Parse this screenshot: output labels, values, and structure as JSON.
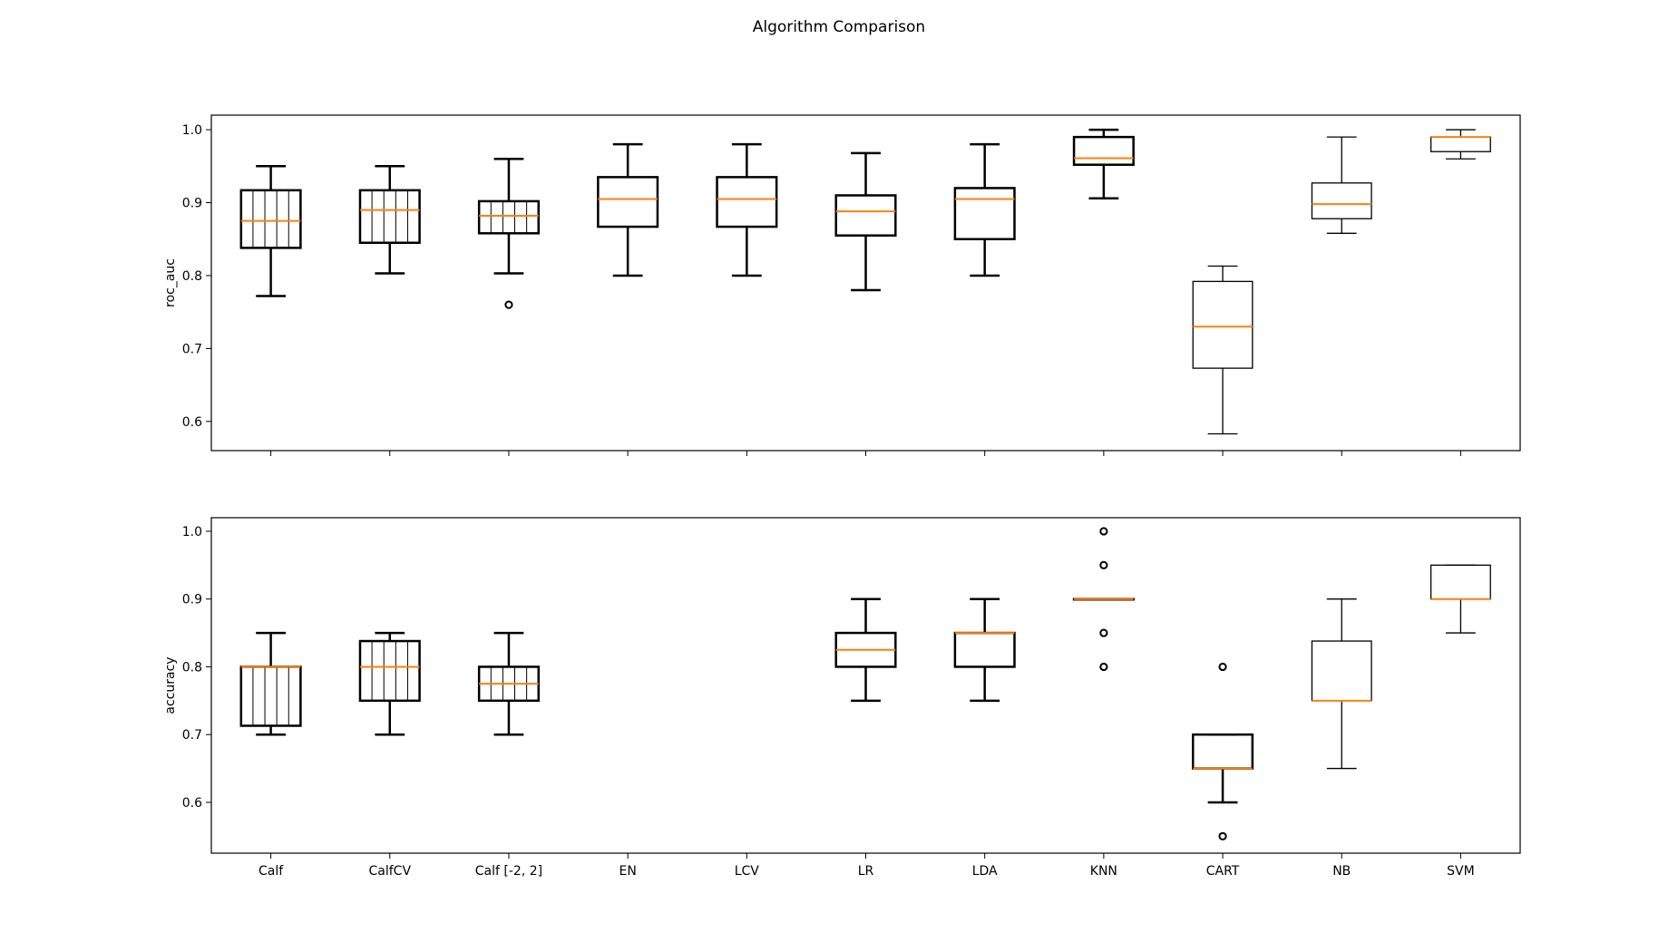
{
  "figure": {
    "title": "Algorithm Comparison"
  },
  "colors": {
    "box": "#000000",
    "median": "#ff7f0e",
    "hatch": "#000000",
    "background": "#ffffff"
  },
  "chart_data": [
    {
      "type": "boxplot",
      "ylabel": "roc_auc",
      "ylim": [
        0.56,
        1.02
      ],
      "yticks": [
        "0.6",
        "0.7",
        "0.8",
        "0.9",
        "1.0"
      ],
      "show_xticklabels": false,
      "categories": [
        "Calf",
        "CalfCV",
        "Calf [-2, 2]",
        "EN",
        "LCV",
        "LR",
        "LDA",
        "KNN",
        "CART",
        "NB",
        "SVM"
      ],
      "boxes": [
        {
          "whislo": 0.772,
          "q1": 0.838,
          "med": 0.875,
          "q3": 0.917,
          "whishi": 0.95,
          "fliers": [],
          "hatch": true,
          "bold": true
        },
        {
          "whislo": 0.803,
          "q1": 0.845,
          "med": 0.89,
          "q3": 0.917,
          "whishi": 0.95,
          "fliers": [],
          "hatch": true,
          "bold": true
        },
        {
          "whislo": 0.803,
          "q1": 0.858,
          "med": 0.882,
          "q3": 0.902,
          "whishi": 0.96,
          "fliers": [
            0.76
          ],
          "hatch": true,
          "bold": true
        },
        {
          "whislo": 0.8,
          "q1": 0.867,
          "med": 0.905,
          "q3": 0.935,
          "whishi": 0.98,
          "fliers": [],
          "hatch": false,
          "bold": true
        },
        {
          "whislo": 0.8,
          "q1": 0.867,
          "med": 0.905,
          "q3": 0.935,
          "whishi": 0.98,
          "fliers": [],
          "hatch": false,
          "bold": true
        },
        {
          "whislo": 0.78,
          "q1": 0.855,
          "med": 0.888,
          "q3": 0.91,
          "whishi": 0.968,
          "fliers": [],
          "hatch": false,
          "bold": true
        },
        {
          "whislo": 0.8,
          "q1": 0.85,
          "med": 0.905,
          "q3": 0.92,
          "whishi": 0.98,
          "fliers": [],
          "hatch": false,
          "bold": true
        },
        {
          "whislo": 0.906,
          "q1": 0.952,
          "med": 0.961,
          "q3": 0.99,
          "whishi": 1.0,
          "fliers": [],
          "hatch": false,
          "bold": true
        },
        {
          "whislo": 0.583,
          "q1": 0.673,
          "med": 0.73,
          "q3": 0.792,
          "whishi": 0.813,
          "fliers": [],
          "hatch": false,
          "bold": false
        },
        {
          "whislo": 0.858,
          "q1": 0.878,
          "med": 0.898,
          "q3": 0.927,
          "whishi": 0.99,
          "fliers": [],
          "hatch": false,
          "bold": false
        },
        {
          "whislo": 0.96,
          "q1": 0.97,
          "med": 0.99,
          "q3": 0.99,
          "whishi": 1.0,
          "fliers": [],
          "hatch": false,
          "bold": false
        }
      ]
    },
    {
      "type": "boxplot",
      "ylabel": "accuracy",
      "ylim": [
        0.525,
        1.02
      ],
      "yticks": [
        "0.6",
        "0.7",
        "0.8",
        "0.9",
        "1.0"
      ],
      "show_xticklabels": true,
      "categories": [
        "Calf",
        "CalfCV",
        "Calf [-2, 2]",
        "EN",
        "LCV",
        "LR",
        "LDA",
        "KNN",
        "CART",
        "NB",
        "SVM"
      ],
      "boxes": [
        {
          "whislo": 0.7,
          "q1": 0.713,
          "med": 0.8,
          "q3": 0.8,
          "whishi": 0.85,
          "fliers": [],
          "hatch": true,
          "bold": true
        },
        {
          "whislo": 0.7,
          "q1": 0.75,
          "med": 0.8,
          "q3": 0.838,
          "whishi": 0.85,
          "fliers": [],
          "hatch": true,
          "bold": true
        },
        {
          "whislo": 0.7,
          "q1": 0.75,
          "med": 0.775,
          "q3": 0.8,
          "whishi": 0.85,
          "fliers": [],
          "hatch": true,
          "bold": true
        },
        null,
        null,
        {
          "whislo": 0.75,
          "q1": 0.8,
          "med": 0.825,
          "q3": 0.85,
          "whishi": 0.9,
          "fliers": [],
          "hatch": false,
          "bold": true
        },
        {
          "whislo": 0.75,
          "q1": 0.8,
          "med": 0.85,
          "q3": 0.85,
          "whishi": 0.9,
          "fliers": [],
          "hatch": false,
          "bold": true
        },
        {
          "whislo": 0.9,
          "q1": 0.9,
          "med": 0.9,
          "q3": 0.9,
          "whishi": 0.9,
          "fliers": [
            1.0,
            0.95,
            0.85,
            0.8
          ],
          "hatch": false,
          "bold": true
        },
        {
          "whislo": 0.6,
          "q1": 0.65,
          "med": 0.65,
          "q3": 0.7,
          "whishi": 0.7,
          "fliers": [
            0.8,
            0.55
          ],
          "hatch": false,
          "bold": true
        },
        {
          "whislo": 0.65,
          "q1": 0.75,
          "med": 0.75,
          "q3": 0.838,
          "whishi": 0.9,
          "fliers": [],
          "hatch": false,
          "bold": false
        },
        {
          "whislo": 0.85,
          "q1": 0.9,
          "med": 0.9,
          "q3": 0.95,
          "whishi": 0.95,
          "fliers": [],
          "hatch": false,
          "bold": false
        }
      ]
    }
  ]
}
